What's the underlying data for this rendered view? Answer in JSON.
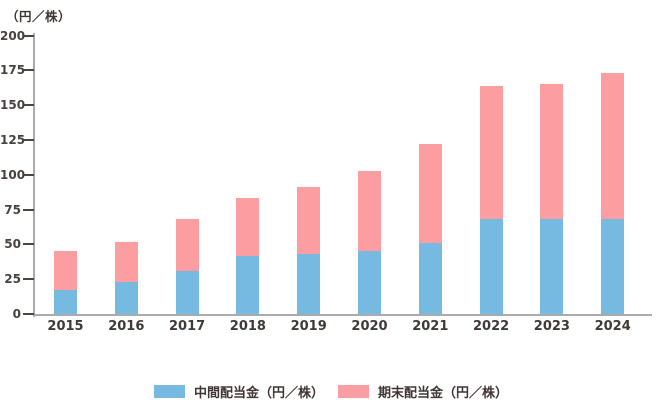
{
  "chart": {
    "unit_label": "（円／株）",
    "colors": {
      "interim_blue": "#76b9e1",
      "yearend_pink": "#fc9da1",
      "axis_gray": "#ababab",
      "tick_dark": "#4c4643",
      "text_dark": "#3f3937"
    },
    "legend": [
      {
        "label": "中間配当金（円／株）"
      },
      {
        "label": "期末配当金（円／株）"
      }
    ]
  },
  "chart_data": {
    "type": "bar",
    "stacked": true,
    "title": "",
    "ylabel": "（円／株）",
    "xlabel": "",
    "categories": [
      "2015",
      "2016",
      "2017",
      "2018",
      "2019",
      "2020",
      "2021",
      "2022",
      "2023",
      "2024"
    ],
    "series": [
      {
        "name": "中間配当金（円／株）",
        "color": "#76b9e1",
        "values": [
          17,
          23,
          31,
          42,
          43,
          45,
          51,
          68,
          68,
          68
        ]
      },
      {
        "name": "期末配当金（円／株）",
        "color": "#fc9da1",
        "values": [
          28,
          29,
          37,
          41,
          48,
          58,
          71,
          96,
          97,
          105
        ]
      }
    ],
    "totals": [
      45,
      52,
      68,
      83,
      91,
      103,
      122,
      164,
      165,
      173
    ],
    "ylim": [
      0,
      200
    ],
    "yticks": [
      0,
      25,
      50,
      75,
      100,
      125,
      150,
      175,
      200
    ],
    "grid": false,
    "legend_position": "bottom"
  }
}
